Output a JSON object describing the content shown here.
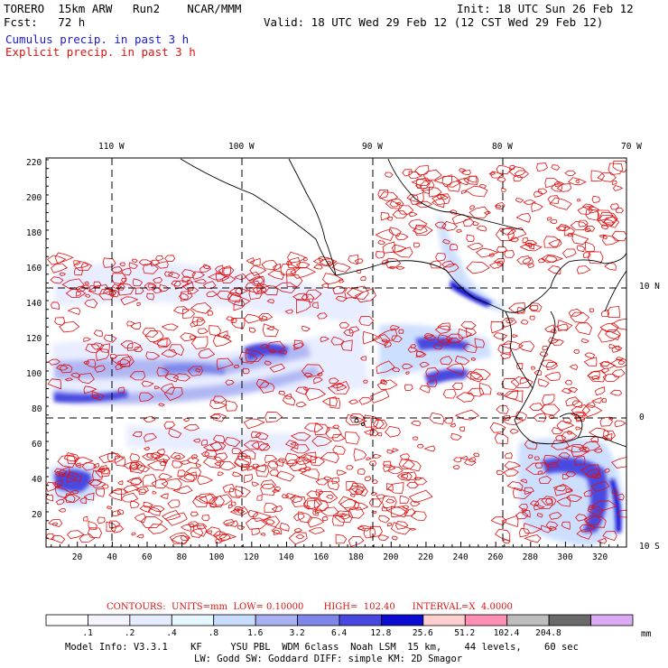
{
  "header": {
    "line1_left": "TORERO  15km ARW   Run2    NCAR/MMM",
    "line1_right": "Init: 18 UTC Sun 26 Feb 12",
    "line2_left": "Fcst:   72 h",
    "line2_right": "Valid: 18 UTC Wed 29 Feb 12 (12 CST Wed 29 Feb 12)",
    "field1": "Cumulus precip. in past 3 h",
    "field2": "Explicit precip. in past 3 h",
    "field1_color": "#1a1acc",
    "field2_color": "#e01010"
  },
  "map": {
    "lon_labels": [
      "110 W",
      "100 W",
      "90 W",
      "80 W",
      "70 W"
    ],
    "lat_labels": [
      "10 N",
      "0",
      "10 S"
    ],
    "y_ticks": [
      "220",
      "200",
      "180",
      "160",
      "140",
      "120",
      "100",
      "80",
      "60",
      "40",
      "20"
    ],
    "x_ticks": [
      "20",
      "40",
      "60",
      "80",
      "100",
      "120",
      "140",
      "160",
      "180",
      "200",
      "220",
      "240",
      "260",
      "280",
      "300",
      "320"
    ]
  },
  "contours": {
    "text": "CONTOURS:  UNITS=mm  LOW= 0.10000       HIGH=  102.40      INTERVAL=X  4.0000"
  },
  "colorbar": {
    "labels": [
      ".1",
      ".2",
      ".4",
      ".8",
      "1.6",
      "3.2",
      "6.4",
      "12.8",
      "25.6",
      "51.2",
      "102.4",
      "204.8"
    ],
    "unit": "mm",
    "colors": [
      "#ffffff",
      "#f4f4ff",
      "#e6ecff",
      "#e6f6ff",
      "#c8dcff",
      "#a8b0f2",
      "#7f86ea",
      "#4848e0",
      "#0a0ad2",
      "#ffcfcf",
      "#ff8fb4",
      "#bdbdbd",
      "#6a6a6a",
      "#dcaaf4"
    ]
  },
  "footer": {
    "line1": "Model Info: V3.3.1    KF     YSU PBL  WDM 6class  Noah LSM  15 km,    44 levels,    60 sec",
    "line2": "LW: Godd SW: Goddard DIFF: simple KM: 2D Smagor"
  }
}
